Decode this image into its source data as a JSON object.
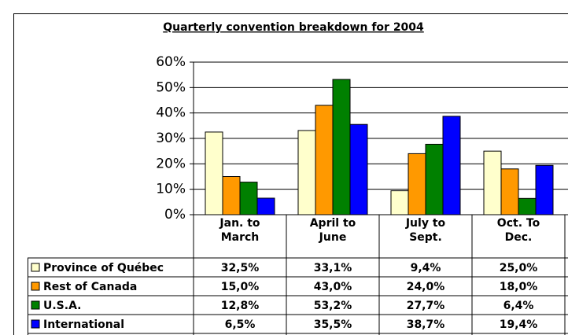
{
  "chart_data": {
    "type": "bar",
    "title": "Quarterly convention breakdown for 2004",
    "categories": [
      "Jan. to March",
      "April to June",
      "July to Sept.",
      "Oct. To Dec."
    ],
    "series": [
      {
        "name": "Province of Québec",
        "color": "#ffffcc",
        "values": [
          32.5,
          33.1,
          9.4,
          25.0
        ],
        "value_labels": [
          "32,5%",
          "33,1%",
          "9,4%",
          "25,0%"
        ]
      },
      {
        "name": "Rest of Canada",
        "color": "#ff9900",
        "values": [
          15.0,
          43.0,
          24.0,
          18.0
        ],
        "value_labels": [
          "15,0%",
          "43,0%",
          "24,0%",
          "18,0%"
        ]
      },
      {
        "name": "U.S.A.",
        "color": "#008000",
        "values": [
          12.8,
          53.2,
          27.7,
          6.4
        ],
        "value_labels": [
          "12,8%",
          "53,2%",
          "27,7%",
          "6,4%"
        ]
      },
      {
        "name": "International",
        "color": "#0000ff",
        "values": [
          6.5,
          35.5,
          38.7,
          19.4
        ],
        "value_labels": [
          "6,5%",
          "35,5%",
          "38,7%",
          "19,4%"
        ]
      }
    ],
    "ylim": [
      0,
      60
    ],
    "yticks": [
      {
        "value": 0,
        "label": "0%"
      },
      {
        "value": 10,
        "label": "10%"
      },
      {
        "value": 20,
        "label": "20%"
      },
      {
        "value": 30,
        "label": "30%"
      },
      {
        "value": 40,
        "label": "40%"
      },
      {
        "value": 50,
        "label": "50%"
      },
      {
        "value": 60,
        "label": "60%"
      }
    ],
    "grid": true
  }
}
